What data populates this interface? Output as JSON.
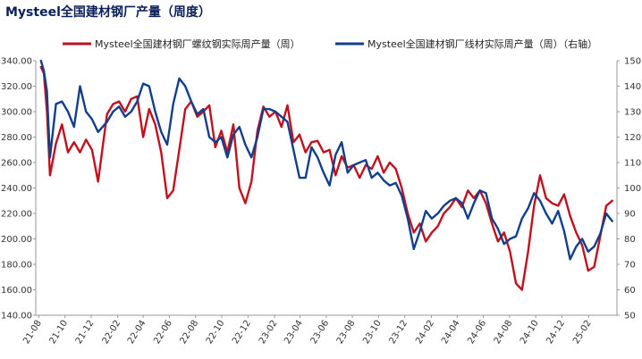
{
  "title": "Mysteel全国建材钢厂产量（周度）",
  "colors": {
    "rebar": "#c0111f",
    "wire": "#123f8c",
    "axis": "#999999"
  },
  "chart_data": {
    "type": "line",
    "title": "Mysteel全国建材钢厂产量（周度）",
    "legend_position": "top",
    "grid": false,
    "x_ticks": [
      "21-08",
      "21-10",
      "21-12",
      "22-02",
      "22-04",
      "22-06",
      "22-08",
      "22-10",
      "22-12",
      "23-02",
      "23-04",
      "23-06",
      "23-08",
      "23-10",
      "23-12",
      "24-02",
      "24-04",
      "24-06",
      "24-08",
      "24-10",
      "24-12",
      "25-02"
    ],
    "y_left": {
      "min": 140,
      "max": 340,
      "step": 20,
      "ticks": [
        "140.00",
        "160.00",
        "180.00",
        "200.00",
        "220.00",
        "240.00",
        "260.00",
        "280.00",
        "300.00",
        "320.00",
        "340.00"
      ]
    },
    "y_right": {
      "min": 50,
      "max": 150,
      "step": 10,
      "ticks": [
        "50",
        "60",
        "70",
        "80",
        "90",
        "100",
        "110",
        "120",
        "130",
        "140",
        "150"
      ]
    },
    "series": [
      {
        "name": "Mysteel全国建材钢厂螺纹钢实际周产量（周）",
        "axis": "left",
        "color": "#c0111f",
        "x": [
          "2021-08-06",
          "2021-08-13",
          "2021-08-20",
          "2021-08-27",
          "2021-09-10",
          "2021-09-24",
          "2021-10-08",
          "2021-10-22",
          "2021-11-05",
          "2021-11-19",
          "2021-12-03",
          "2021-12-17",
          "2022-01-07",
          "2022-01-21",
          "2022-02-04",
          "2022-02-18",
          "2022-03-04",
          "2022-03-18",
          "2022-04-01",
          "2022-04-15",
          "2022-04-29",
          "2022-05-13",
          "2022-05-27",
          "2022-06-10",
          "2022-06-24",
          "2022-07-08",
          "2022-07-22",
          "2022-08-05",
          "2022-08-19",
          "2022-09-02",
          "2022-09-16",
          "2022-09-30",
          "2022-10-14",
          "2022-10-28",
          "2022-11-11",
          "2022-11-25",
          "2022-12-09",
          "2022-12-23",
          "2023-01-06",
          "2023-01-20",
          "2023-02-03",
          "2023-02-17",
          "2023-03-03",
          "2023-03-17",
          "2023-03-31",
          "2023-04-14",
          "2023-04-28",
          "2023-05-12",
          "2023-05-26",
          "2023-06-09",
          "2023-06-23",
          "2023-07-07",
          "2023-07-21",
          "2023-08-04",
          "2023-08-18",
          "2023-09-01",
          "2023-09-15",
          "2023-09-29",
          "2023-10-13",
          "2023-10-27",
          "2023-11-10",
          "2023-11-24",
          "2023-12-08",
          "2023-12-22",
          "2024-01-05",
          "2024-01-19",
          "2024-02-02",
          "2024-02-16",
          "2024-03-01",
          "2024-03-15",
          "2024-03-29",
          "2024-04-12",
          "2024-04-26",
          "2024-05-10",
          "2024-05-24",
          "2024-06-07",
          "2024-06-21",
          "2024-07-05",
          "2024-07-19",
          "2024-08-02",
          "2024-08-16",
          "2024-08-30",
          "2024-09-13",
          "2024-09-27",
          "2024-10-11",
          "2024-10-25",
          "2024-11-08",
          "2024-11-22",
          "2024-12-06",
          "2024-12-20",
          "2025-01-03",
          "2025-01-17",
          "2025-01-31",
          "2025-02-14",
          "2025-02-28",
          "2025-03-14",
          "2025-03-28"
        ],
        "values": [
          335,
          330,
          300,
          250,
          275,
          290,
          268,
          276,
          268,
          278,
          270,
          245,
          298,
          306,
          308,
          300,
          310,
          312,
          280,
          302,
          290,
          268,
          232,
          238,
          270,
          302,
          308,
          296,
          300,
          305,
          272,
          285,
          268,
          290,
          240,
          228,
          245,
          285,
          304,
          296,
          300,
          288,
          305,
          276,
          282,
          268,
          276,
          277,
          268,
          270,
          250,
          265,
          256,
          258,
          248,
          258,
          255,
          265,
          252,
          260,
          255,
          240,
          220,
          205,
          212,
          198,
          205,
          210,
          220,
          225,
          232,
          225,
          238,
          232,
          238,
          228,
          212,
          198,
          205,
          190,
          165,
          160,
          190,
          226,
          250,
          232,
          228,
          226,
          235,
          218,
          205,
          195,
          175,
          178,
          202,
          226,
          230
        ]
      },
      {
        "name": "Mysteel全国建材钢厂线材实际周产量（周）（右轴）",
        "axis": "right",
        "color": "#123f8c",
        "x": [
          "2021-08-06",
          "2021-08-13",
          "2021-08-20",
          "2021-08-27",
          "2021-09-10",
          "2021-09-24",
          "2021-10-08",
          "2021-10-22",
          "2021-11-05",
          "2021-11-19",
          "2021-12-03",
          "2021-12-17",
          "2022-01-07",
          "2022-01-21",
          "2022-02-04",
          "2022-02-18",
          "2022-03-04",
          "2022-03-18",
          "2022-04-01",
          "2022-04-15",
          "2022-04-29",
          "2022-05-13",
          "2022-05-27",
          "2022-06-10",
          "2022-06-24",
          "2022-07-08",
          "2022-07-22",
          "2022-08-05",
          "2022-08-19",
          "2022-09-02",
          "2022-09-16",
          "2022-09-30",
          "2022-10-14",
          "2022-10-28",
          "2022-11-11",
          "2022-11-25",
          "2022-12-09",
          "2022-12-23",
          "2023-01-06",
          "2023-01-20",
          "2023-02-03",
          "2023-02-17",
          "2023-03-03",
          "2023-03-17",
          "2023-03-31",
          "2023-04-14",
          "2023-04-28",
          "2023-05-12",
          "2023-05-26",
          "2023-06-09",
          "2023-06-23",
          "2023-07-07",
          "2023-07-21",
          "2023-08-04",
          "2023-08-18",
          "2023-09-01",
          "2023-09-15",
          "2023-09-29",
          "2023-10-13",
          "2023-10-27",
          "2023-11-10",
          "2023-11-24",
          "2023-12-08",
          "2023-12-22",
          "2024-01-05",
          "2024-01-19",
          "2024-02-02",
          "2024-02-16",
          "2024-03-01",
          "2024-03-15",
          "2024-03-29",
          "2024-04-12",
          "2024-04-26",
          "2024-05-10",
          "2024-05-24",
          "2024-06-07",
          "2024-06-21",
          "2024-07-05",
          "2024-07-19",
          "2024-08-02",
          "2024-08-16",
          "2024-08-30",
          "2024-09-13",
          "2024-09-27",
          "2024-10-11",
          "2024-10-25",
          "2024-11-08",
          "2024-11-22",
          "2024-12-06",
          "2024-12-20",
          "2025-01-03",
          "2025-01-17",
          "2025-01-31",
          "2025-02-14",
          "2025-02-28",
          "2025-03-14",
          "2025-03-28"
        ],
        "values": [
          150,
          146,
          138,
          112,
          133,
          134,
          130,
          124,
          140,
          130,
          127,
          122,
          126,
          130,
          132,
          128,
          130,
          134,
          141,
          140,
          130,
          122,
          117,
          133,
          143,
          140,
          134,
          129,
          131,
          120,
          118,
          120,
          112,
          121,
          124,
          117,
          112,
          120,
          131,
          131,
          130,
          128,
          126,
          115,
          104,
          104,
          116,
          112,
          106,
          101,
          113,
          118,
          106,
          109,
          110,
          111,
          104,
          106,
          103,
          101,
          102,
          97,
          88,
          76,
          83,
          91,
          88,
          90,
          93,
          95,
          96,
          94,
          88,
          94,
          99,
          98,
          88,
          84,
          78,
          80,
          81,
          88,
          92,
          98,
          95,
          90,
          86,
          91,
          83,
          72,
          77,
          80,
          75,
          77,
          82,
          90,
          87
        ]
      }
    ]
  }
}
